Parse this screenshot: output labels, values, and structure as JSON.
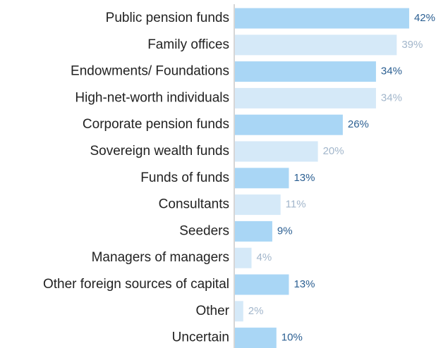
{
  "chart_data": {
    "type": "bar",
    "orientation": "horizontal",
    "categories": [
      "Public pension funds",
      "Family offices",
      "Endowments/ Foundations",
      "High-net-worth individuals",
      "Corporate pension funds",
      "Sovereign wealth funds",
      "Funds of funds",
      "Consultants",
      "Seeders",
      "Managers of managers",
      "Other foreign sources of capital",
      "Other",
      "Uncertain"
    ],
    "values": [
      42,
      39,
      34,
      34,
      26,
      20,
      13,
      11,
      9,
      4,
      13,
      2,
      10
    ],
    "value_labels": [
      "42%",
      "39%",
      "34%",
      "34%",
      "26%",
      "20%",
      "13%",
      "11%",
      "9%",
      "4%",
      "13%",
      "2%",
      "10%"
    ],
    "colors": [
      "#a9d6f5",
      "#d5e9f8"
    ],
    "label_colors": [
      "#2b5f92",
      "#a2b6cb"
    ]
  }
}
